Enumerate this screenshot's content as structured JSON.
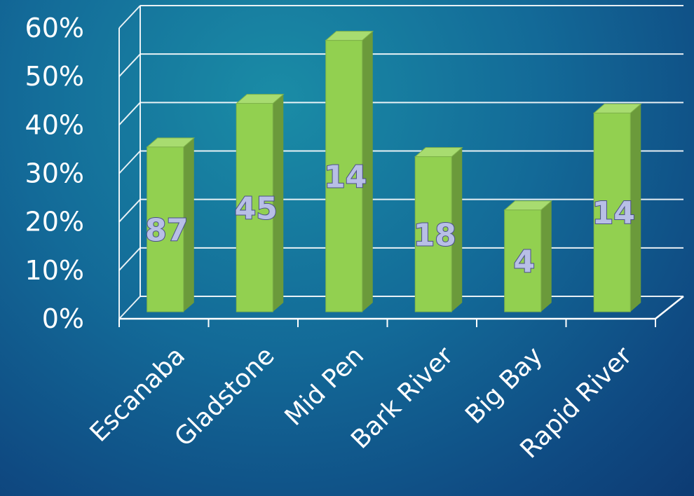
{
  "colors": {
    "bar_front": "#92d050",
    "bar_side": "#6b9a3b",
    "bar_top": "#a8dc70",
    "grid": "#ffffff"
  },
  "chart_data": {
    "type": "bar",
    "categories": [
      "Escanaba",
      "Gladstone",
      "Mid Pen",
      "Bark River",
      "Big Bay",
      "Rapid River"
    ],
    "values": [
      34,
      43,
      56,
      32,
      21,
      41
    ],
    "data_labels": [
      "87",
      "45",
      "14",
      "18",
      "4",
      "14"
    ],
    "ylim": [
      0,
      60
    ],
    "y_ticks": [
      "0%",
      "10%",
      "20%",
      "30%",
      "40%",
      "50%",
      "60%"
    ],
    "grid": true,
    "legend": "none",
    "style": "3d-column"
  }
}
